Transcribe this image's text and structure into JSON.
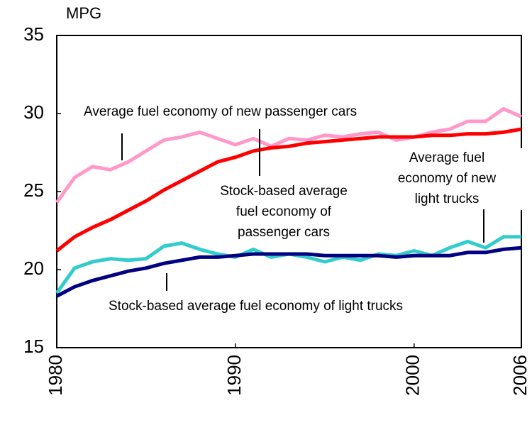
{
  "chart_data": {
    "type": "line",
    "y_label": "MPG",
    "x": [
      1980,
      1981,
      1982,
      1983,
      1984,
      1985,
      1986,
      1987,
      1988,
      1989,
      1990,
      1991,
      1992,
      1993,
      1994,
      1995,
      1996,
      1997,
      1998,
      1999,
      2000,
      2001,
      2002,
      2003,
      2004,
      2005,
      2006
    ],
    "xlim": [
      1980,
      2006
    ],
    "xticks": [
      1980,
      1990,
      2000,
      2006
    ],
    "ylim": [
      15,
      35
    ],
    "yticks": [
      15,
      20,
      25,
      30,
      35
    ],
    "grid": false,
    "legend": false,
    "series": [
      {
        "name": "Average fuel economy of new passenger cars",
        "color": "#ff99cc",
        "values": [
          24.3,
          25.9,
          26.6,
          26.4,
          26.9,
          27.6,
          28.3,
          28.5,
          28.8,
          28.4,
          28.0,
          28.4,
          27.9,
          28.4,
          28.3,
          28.6,
          28.5,
          28.7,
          28.8,
          28.3,
          28.5,
          28.8,
          29.0,
          29.5,
          29.5,
          30.3,
          29.8
        ]
      },
      {
        "name": "Stock-based average fuel economy of passenger cars",
        "color": "#ff0000",
        "values": [
          21.2,
          22.1,
          22.7,
          23.2,
          23.8,
          24.4,
          25.1,
          25.7,
          26.3,
          26.9,
          27.2,
          27.6,
          27.8,
          27.9,
          28.1,
          28.2,
          28.3,
          28.4,
          28.5,
          28.5,
          28.5,
          28.6,
          28.6,
          28.7,
          28.7,
          28.8,
          29.0
        ]
      },
      {
        "name": "Average fuel economy of new light trucks",
        "color": "#33cccc",
        "values": [
          18.5,
          20.1,
          20.5,
          20.7,
          20.6,
          20.7,
          21.5,
          21.7,
          21.3,
          21.0,
          20.8,
          21.3,
          20.8,
          21.0,
          20.8,
          20.5,
          20.8,
          20.6,
          21.0,
          20.9,
          21.2,
          20.9,
          21.4,
          21.8,
          21.4,
          22.1,
          22.1
        ]
      },
      {
        "name": "Stock-based average fuel economy of light trucks",
        "color": "#000080",
        "values": [
          18.3,
          18.9,
          19.3,
          19.6,
          19.9,
          20.1,
          20.4,
          20.6,
          20.8,
          20.8,
          20.9,
          21.0,
          21.0,
          21.0,
          21.0,
          20.9,
          20.9,
          20.9,
          20.9,
          20.8,
          20.9,
          20.9,
          20.9,
          21.1,
          21.1,
          21.3,
          21.4
        ]
      }
    ],
    "annotations": [
      [
        "Average fuel economy of new passenger cars"
      ],
      [
        "Stock-based average",
        "fuel economy of",
        "passenger cars"
      ],
      [
        "Average fuel",
        "economy of new",
        "light trucks"
      ],
      [
        "Stock-based average fuel economy of light trucks"
      ]
    ]
  }
}
